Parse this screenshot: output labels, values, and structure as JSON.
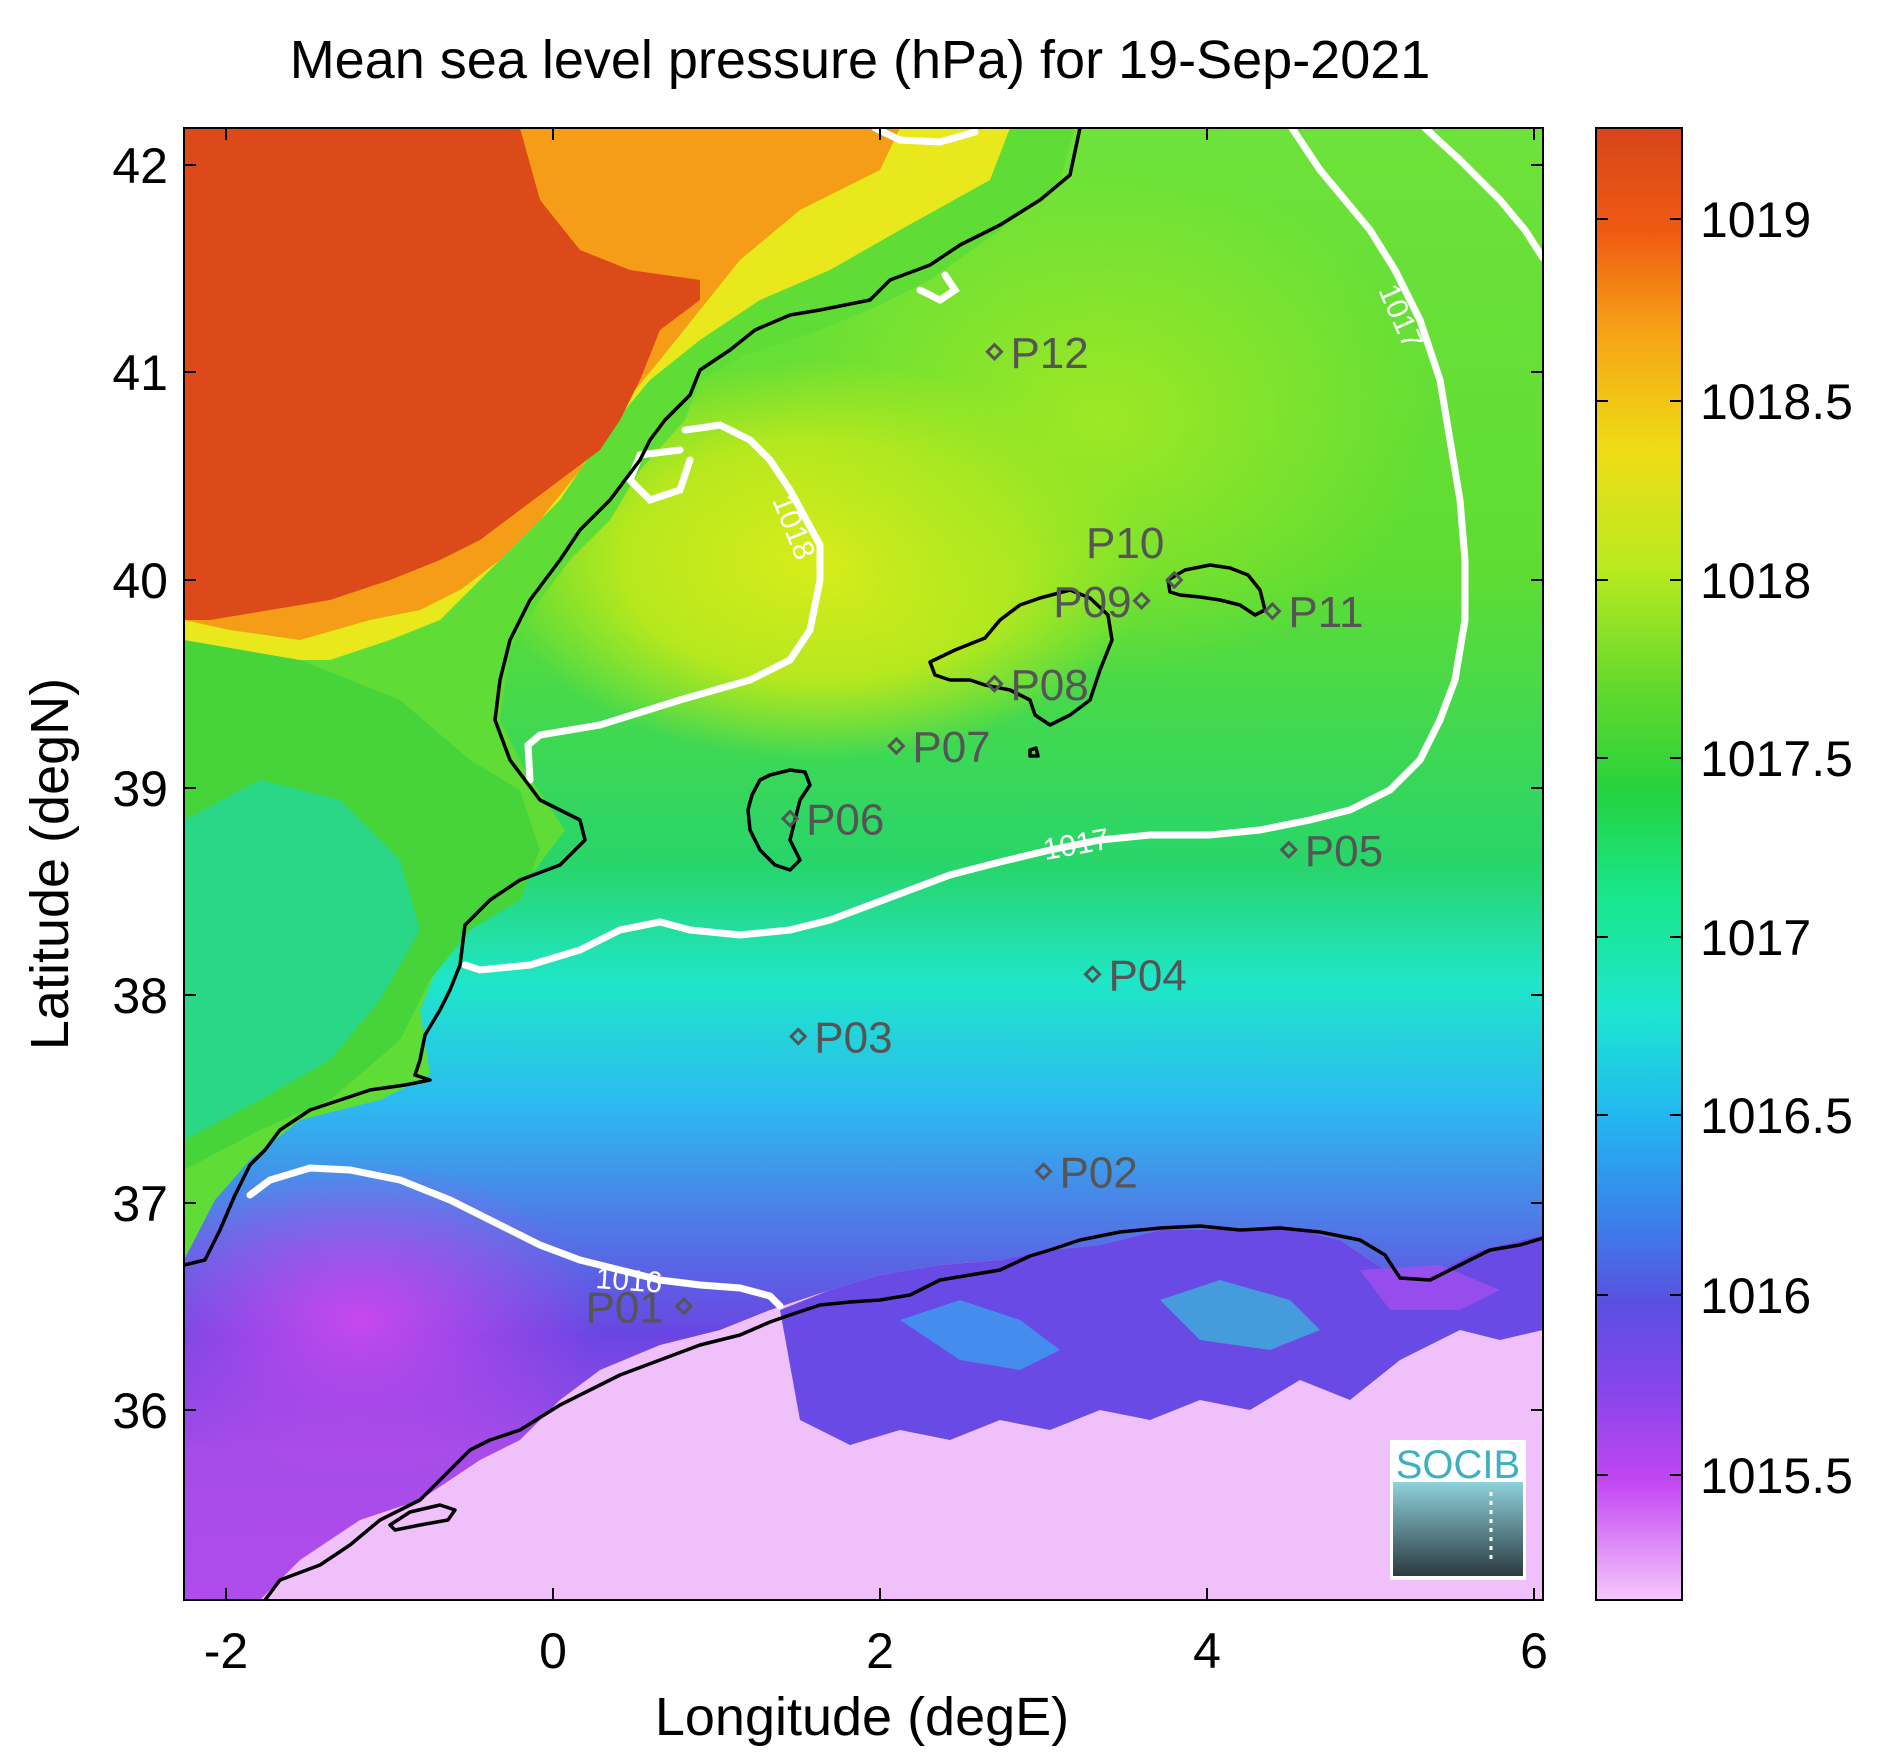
{
  "title": "Mean sea level pressure (hPa) for 19-Sep-2021",
  "xlabel": "Longitude (degE)",
  "ylabel": "Latitude (degN)",
  "x_ticks": [
    "-2",
    "0",
    "2",
    "4",
    "6"
  ],
  "y_ticks": [
    "42",
    "41",
    "40",
    "39",
    "38",
    "37",
    "36"
  ],
  "colorbar": {
    "ticks": [
      "1019",
      "1018.5",
      "1018",
      "1017.5",
      "1017",
      "1016.5",
      "1016",
      "1015.5"
    ],
    "colors_top_to_bottom": [
      "#d6451a",
      "#f26a10",
      "#f6a516",
      "#eedd15",
      "#b8ea20",
      "#64d92c",
      "#26d23e",
      "#19e68a",
      "#1ce6cf",
      "#22b8f0",
      "#3a82ec",
      "#5a4fe0",
      "#8a45ea",
      "#c346f2",
      "#e68af6",
      "#f5c8fb"
    ]
  },
  "contour_labels": [
    "1018",
    "1017",
    "1017",
    "1016"
  ],
  "points": [
    {
      "id": "P01",
      "lon": 0.8,
      "lat": 36.5
    },
    {
      "id": "P02",
      "lon": 3.0,
      "lat": 37.15
    },
    {
      "id": "P03",
      "lon": 1.5,
      "lat": 37.8
    },
    {
      "id": "P04",
      "lon": 3.3,
      "lat": 38.1
    },
    {
      "id": "P05",
      "lon": 4.5,
      "lat": 38.7
    },
    {
      "id": "P06",
      "lon": 1.45,
      "lat": 38.85
    },
    {
      "id": "P07",
      "lon": 2.1,
      "lat": 39.2
    },
    {
      "id": "P08",
      "lon": 2.7,
      "lat": 39.5
    },
    {
      "id": "P09",
      "lon": 3.6,
      "lat": 39.9
    },
    {
      "id": "P10",
      "lon": 3.8,
      "lat": 40.0
    },
    {
      "id": "P11",
      "lon": 4.4,
      "lat": 39.85
    },
    {
      "id": "P12",
      "lon": 2.7,
      "lat": 41.1
    }
  ],
  "logo_text": "SOCIB"
}
